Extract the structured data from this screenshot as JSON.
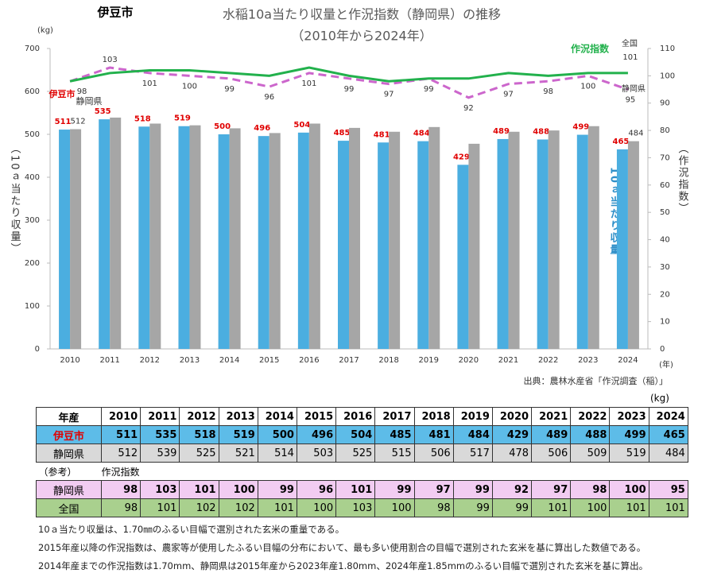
{
  "city": "伊豆市",
  "chart_data": {
    "type": "bar",
    "title": "水稲10a当たり収量と作況指数（静岡県）の推移",
    "subtitle": "（2010年から2024年）",
    "y_unit": "(kg)",
    "x_unit": "(年)",
    "ylabel": "（10ａ当たり収量）",
    "y2label": "（作況指数）",
    "source": "出典：農林水産省「作況調査（稲）」",
    "annotations": {
      "yield": "10ａ当たり収量",
      "index": "作況指数"
    },
    "categories": [
      "2010",
      "2011",
      "2012",
      "2013",
      "2014",
      "2015",
      "2016",
      "2017",
      "2018",
      "2019",
      "2020",
      "2021",
      "2022",
      "2023",
      "2024"
    ],
    "series": [
      {
        "name": "伊豆市",
        "type": "bar",
        "color": "#4BAEE0",
        "label_color": "#E00000",
        "data_labels": "all",
        "values": [
          511,
          535,
          518,
          519,
          500,
          496,
          504,
          485,
          481,
          484,
          429,
          489,
          488,
          499,
          465
        ]
      },
      {
        "name": "静岡県",
        "type": "bar",
        "color": "#A6A6A6",
        "label_color": "#333333",
        "data_labels": "ends",
        "values": [
          512,
          539,
          525,
          521,
          514,
          503,
          525,
          515,
          506,
          517,
          478,
          506,
          509,
          519,
          484
        ]
      },
      {
        "name": "静岡県",
        "type": "line",
        "axis": "y2",
        "color": "#CC66CC",
        "dashed": true,
        "label_color": "#333333",
        "data_labels": "all",
        "values": [
          98,
          103,
          101,
          100,
          99,
          96,
          101,
          99,
          97,
          99,
          92,
          97,
          98,
          100,
          95
        ]
      },
      {
        "name": "全国",
        "type": "line",
        "axis": "y2",
        "color": "#22B14C",
        "dashed": false,
        "label_color": "#333333",
        "data_labels": "last",
        "values": [
          98,
          101,
          102,
          102,
          101,
          100,
          103,
          100,
          98,
          99,
          99,
          101,
          100,
          101,
          101
        ]
      }
    ],
    "ylim": [
      0,
      700
    ],
    "yticks": [
      0,
      100,
      200,
      300,
      400,
      500,
      600,
      700
    ],
    "y2lim": [
      0,
      110
    ],
    "y2ticks": [
      0,
      10,
      20,
      30,
      40,
      50,
      60,
      70,
      80,
      90,
      100,
      110
    ]
  },
  "table": {
    "unit": "(kg)",
    "header": "年産",
    "note_label": "（参考）",
    "index_label": "作況指数"
  },
  "notes": [
    "10ａ当たり収量は、1.70㎜のふるい目幅で選別された玄米の重量である。",
    "2015年産以降の作況指数は、農家等が使用したふるい目幅の分布において、最も多い使用割合の目幅で選別された玄米を基に算出した数値である。",
    "2014年産までの作況指数は1.70mm、静岡県は2015年産から2023年産1.80mm、2024年産1.85mmのふるい目幅で選別された玄米を基に算出。"
  ]
}
